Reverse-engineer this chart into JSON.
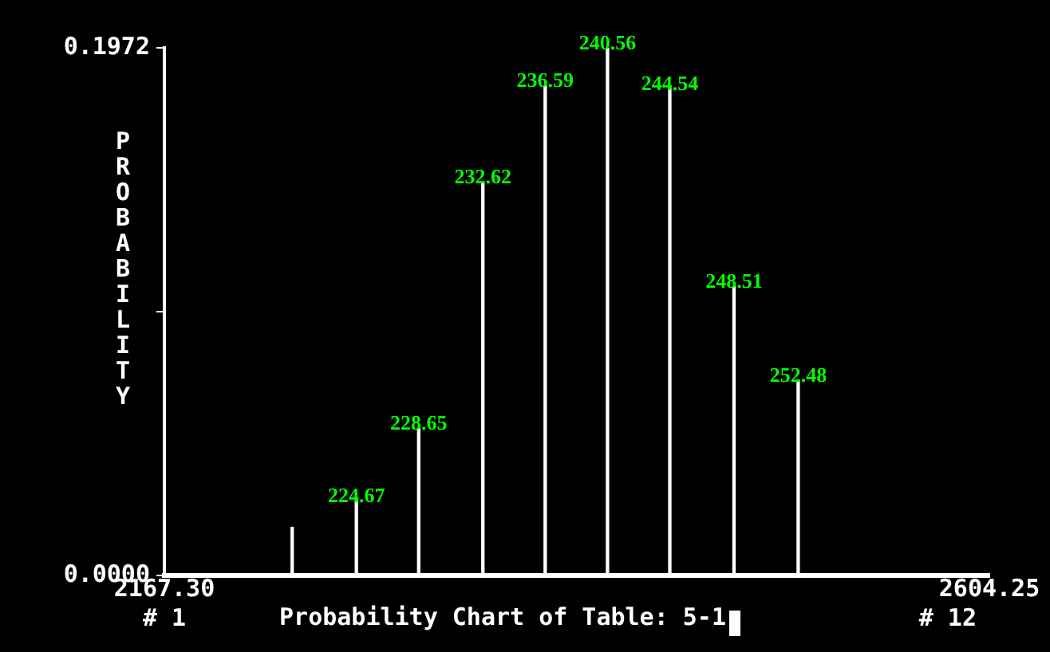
{
  "chart_data": {
    "type": "bar",
    "title": "Probability Chart of Table: 5-1",
    "ylabel": "PROBABILITY",
    "x": [
      2235,
      2269,
      2302,
      2336,
      2369,
      2402,
      2435,
      2469,
      2503
    ],
    "values": [
      0.018,
      0.028,
      0.055,
      0.147,
      0.183,
      0.1972,
      0.182,
      0.108,
      0.073
    ],
    "color": "#ffffff",
    "xlim": [
      2167.3,
      2604.25
    ],
    "xticks": [
      {
        "value": 2167.3,
        "label": "2167.30"
      },
      {
        "value": 2604.25,
        "label": "2604.25"
      }
    ],
    "ylim": [
      0,
      0.1972
    ],
    "yticks": [
      {
        "value": 0,
        "label": "0.0000"
      },
      {
        "value": 0.0986,
        "label": null
      },
      {
        "value": 0.1972,
        "label": "0.1972"
      }
    ],
    "annotations": [
      "# 1",
      "# 12",
      {
        "text": "224.67",
        "x": 2269,
        "y": 0.028
      },
      {
        "text": "228.65",
        "x": 2302,
        "y": 0.055
      },
      {
        "text": "232.62",
        "x": 2336,
        "y": 0.147
      },
      {
        "text": "236.59",
        "x": 2369,
        "y": 0.183
      },
      {
        "text": "240.56",
        "x": 2402,
        "y": 0.1972
      },
      {
        "text": "244.54",
        "x": 2435,
        "y": 0.182
      },
      {
        "text": "248.51",
        "x": 2469,
        "y": 0.108
      },
      {
        "text": "252.48",
        "x": 2503,
        "y": 0.073
      }
    ],
    "grid": false,
    "legend": false
  }
}
